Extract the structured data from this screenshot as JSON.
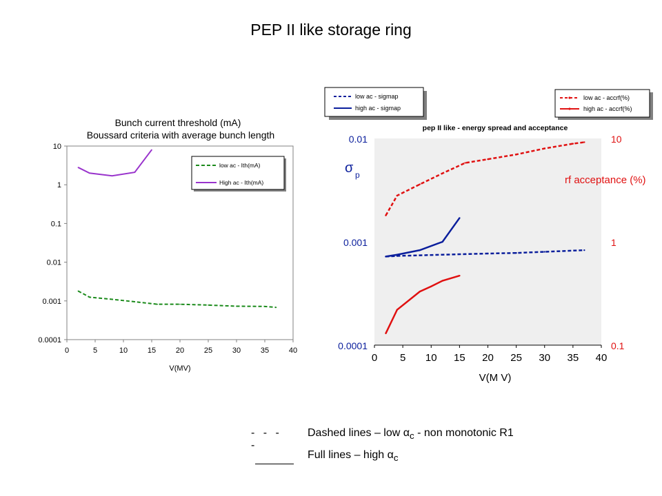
{
  "page": {
    "title": "PEP II like storage ring"
  },
  "notes": [
    {
      "symbol": "- - - -",
      "text_pre": "Dashed lines  – low ",
      "alpha": "α",
      "sub": "c",
      "text_post": " - non monotonic R1"
    },
    {
      "symbol": "",
      "text_pre": "Full lines – high ",
      "alpha": "α",
      "sub": "c",
      "text_post": ""
    }
  ],
  "chart_data": [
    {
      "type": "line",
      "title": "Bunch current threshold (mA)",
      "subtitle": "Boussard criteria with average bunch length",
      "xlabel": "V(MV)",
      "ylabel": "",
      "xlim": [
        0,
        40
      ],
      "ylim": [
        0.0001,
        10
      ],
      "yscale": "log",
      "grid": false,
      "legend": "top-right",
      "x_ticks": [
        "0",
        "5",
        "10",
        "15",
        "20",
        "25",
        "30",
        "35",
        "40"
      ],
      "y_ticks": [
        "10",
        "1",
        "0.1",
        "0.01",
        "0.001",
        "0.0001"
      ],
      "series": [
        {
          "name": "low ac - Ith(mA)",
          "style": "dashed",
          "color": "#1a8a1a",
          "x": [
            2,
            4,
            8,
            12,
            16,
            20,
            25,
            30,
            35,
            37
          ],
          "y": [
            0.0018,
            0.00125,
            0.0011,
            0.00095,
            0.00082,
            0.00082,
            0.00078,
            0.00073,
            0.00072,
            0.00068
          ]
        },
        {
          "name": "High ac - Ith(mA)",
          "style": "solid",
          "color": "#9933cc",
          "x": [
            2,
            4,
            8,
            12,
            15
          ],
          "y": [
            2.8,
            2.0,
            1.7,
            2.1,
            8.0
          ]
        }
      ]
    },
    {
      "type": "line",
      "title": "pep II like - energy spread and acceptance",
      "xlabel": "V(M V)",
      "ylabel": "σ",
      "ylabel_sub": "p",
      "y2label": "rf acceptance (%)",
      "xlim": [
        0,
        40
      ],
      "ylim": [
        0.0001,
        0.01
      ],
      "y2lim": [
        0.1,
        10
      ],
      "yscale": "log",
      "grid": false,
      "legend": "top-left and top-right",
      "x_ticks": [
        "0",
        "5",
        "10",
        "15",
        "20",
        "25",
        "30",
        "35",
        "40"
      ],
      "y_ticks": [
        "0.01",
        "0.001",
        "0.0001"
      ],
      "y2_ticks": [
        "10",
        "1",
        "0.1"
      ],
      "series": [
        {
          "name": "low ac - sigmap",
          "axis": "left",
          "style": "dashed",
          "color": "#0a1e9c",
          "x": [
            2,
            4,
            8,
            12,
            16,
            20,
            25,
            30,
            37
          ],
          "y": [
            0.00072,
            0.00073,
            0.00074,
            0.00075,
            0.00076,
            0.00077,
            0.00078,
            0.0008,
            0.00083
          ]
        },
        {
          "name": "high ac - sigmap",
          "axis": "left",
          "style": "solid",
          "color": "#0a1e9c",
          "x": [
            2,
            4,
            8,
            12,
            15
          ],
          "y": [
            0.00072,
            0.00075,
            0.00083,
            0.001,
            0.0017
          ]
        },
        {
          "name": "low ac - accrf(%)",
          "axis": "right",
          "style": "dashed",
          "color": "#e01010",
          "x": [
            2,
            4,
            8,
            12,
            16,
            20,
            25,
            30,
            35,
            37
          ],
          "y": [
            1.8,
            2.8,
            3.6,
            4.6,
            5.8,
            6.3,
            7.0,
            8.0,
            8.9,
            9.2
          ]
        },
        {
          "name": "high ac - accrf(%)",
          "axis": "right",
          "style": "solid",
          "color": "#e01010",
          "x": [
            2,
            4,
            8,
            10,
            12,
            15
          ],
          "y": [
            0.13,
            0.22,
            0.33,
            0.37,
            0.42,
            0.47
          ]
        }
      ]
    }
  ]
}
